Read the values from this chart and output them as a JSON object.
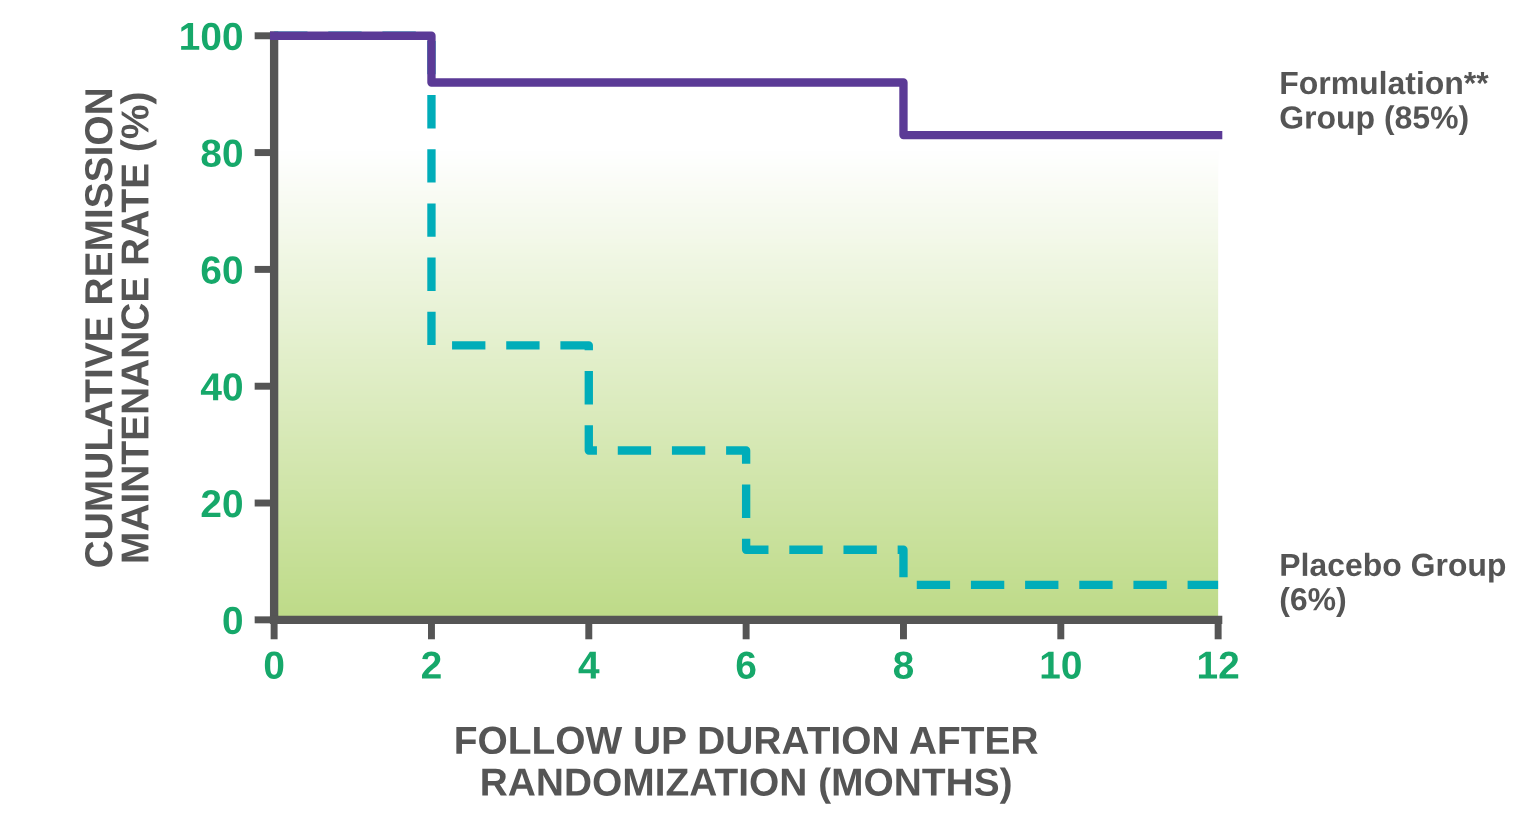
{
  "chart_data": {
    "type": "step",
    "xlabel": "FOLLOW UP DURATION AFTER\nRANDOMIZATION (MONTHS)",
    "ylabel": "CUMULATIVE REMISSION\nMAINTENANCE RATE (%)",
    "x": [
      0,
      2,
      4,
      6,
      8,
      12
    ],
    "series": [
      {
        "name": "Formulation** Group (85%)",
        "color": "#5b3a96",
        "line_style": "solid",
        "values": [
          100,
          92,
          92,
          92,
          83,
          83
        ]
      },
      {
        "name": "Placebo Group (6%)",
        "color": "#00adb9",
        "line_style": "dashed",
        "values": [
          100,
          47,
          29,
          12,
          6,
          6
        ]
      }
    ],
    "xlim": [
      0,
      12
    ],
    "xticks": [
      0,
      2,
      4,
      6,
      8,
      10,
      12
    ],
    "ylim": [
      0,
      100
    ],
    "yticks": [
      0,
      20,
      40,
      60,
      80,
      100
    ],
    "bands": [
      {
        "axis": "y",
        "from": 0,
        "to": 80,
        "color": "#bedb88"
      }
    ],
    "grid": false,
    "legend": false,
    "marker": "none"
  }
}
